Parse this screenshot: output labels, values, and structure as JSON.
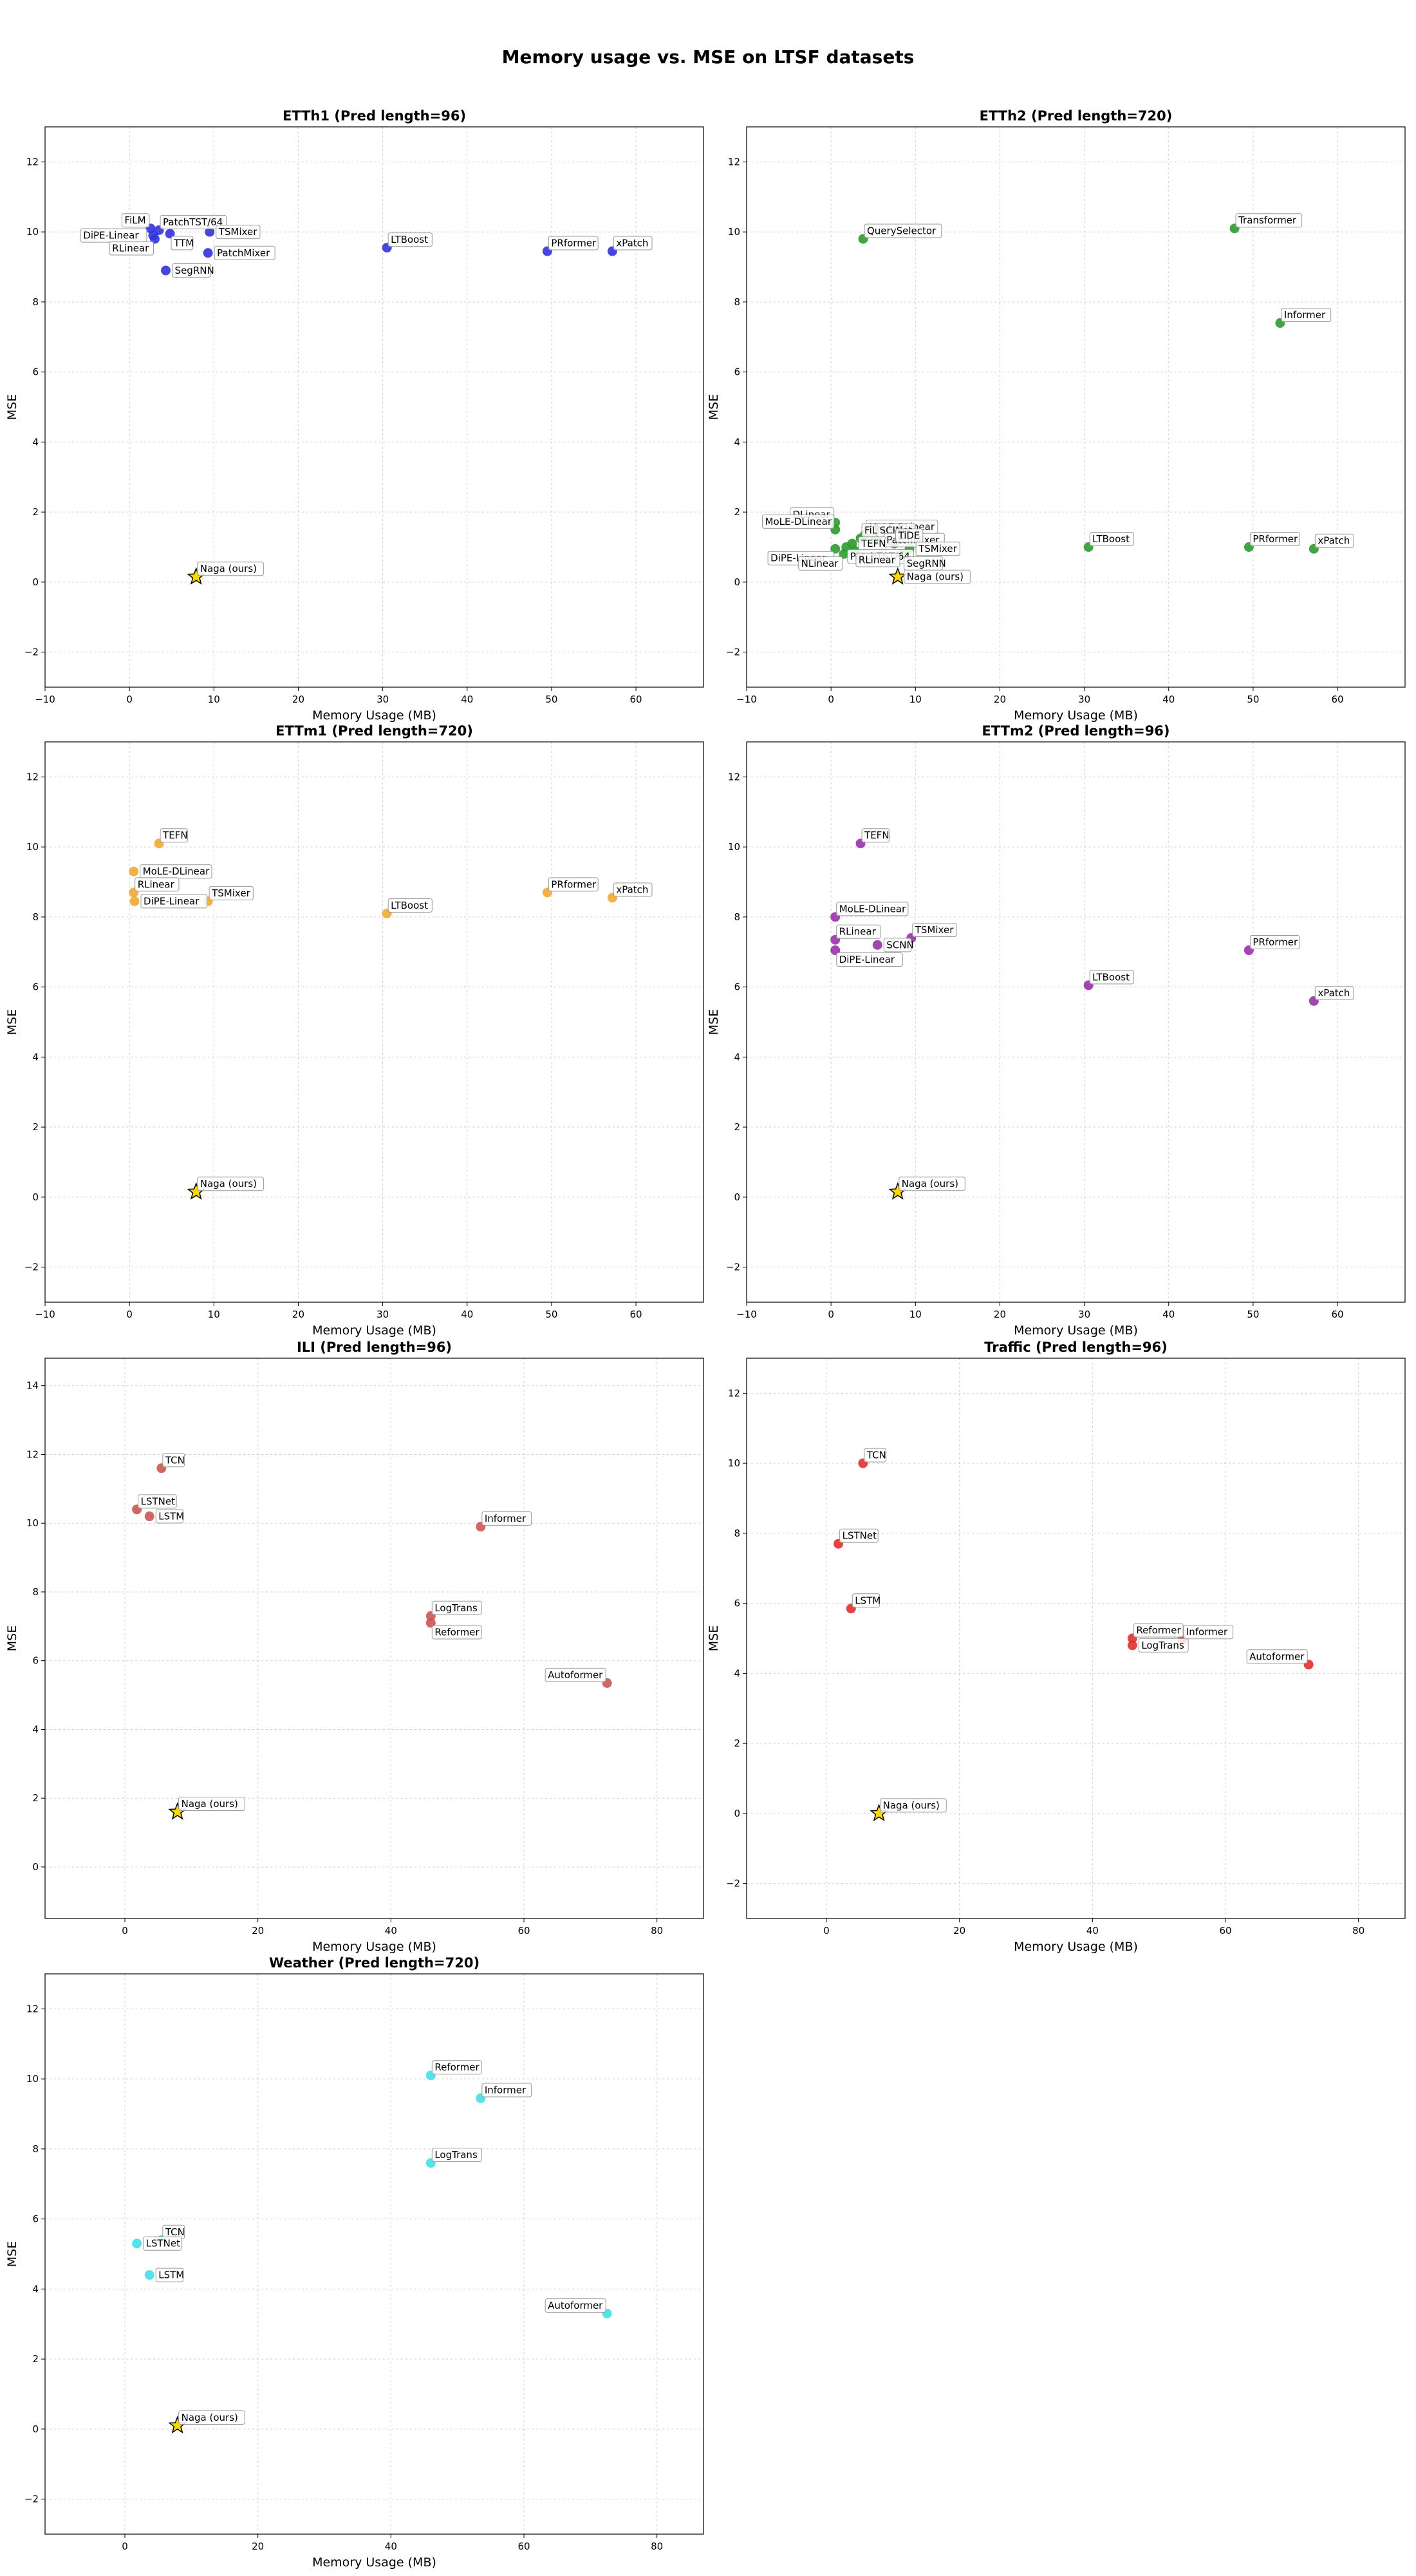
{
  "figure_title": "Memory usage vs. MSE on LTSF datasets",
  "chart_data": [
    {
      "type": "scatter",
      "title": "ETTh1 (Pred length=96)",
      "xlabel": "Memory Usage (MB)",
      "ylabel": "MSE",
      "xlim": [
        -10,
        68
      ],
      "ylim": [
        -3,
        13
      ],
      "xticks": [
        -10,
        0,
        10,
        20,
        30,
        40,
        50,
        60
      ],
      "yticks": [
        -2,
        0,
        2,
        4,
        6,
        8,
        10,
        12
      ],
      "color": "#3333dd",
      "grid": true,
      "points": [
        {
          "name": "FiLM",
          "x": 2.5,
          "y": 10.1,
          "placement": "above-left"
        },
        {
          "name": "PatchTST/64",
          "x": 3.5,
          "y": 10.05,
          "placement": "above-right"
        },
        {
          "name": "DiPE-Linear",
          "x": 2.8,
          "y": 9.9,
          "placement": "left"
        },
        {
          "name": "RLinear",
          "x": 3.0,
          "y": 9.8,
          "placement": "below-left"
        },
        {
          "name": "TTM",
          "x": 4.8,
          "y": 9.95,
          "placement": "below-right"
        },
        {
          "name": "TSMixer",
          "x": 9.5,
          "y": 10.0,
          "placement": "right"
        },
        {
          "name": "PatchMixer",
          "x": 9.3,
          "y": 9.4,
          "placement": "right"
        },
        {
          "name": "SegRNN",
          "x": 4.3,
          "y": 8.9,
          "placement": "right"
        },
        {
          "name": "LTBoost",
          "x": 30.5,
          "y": 9.55,
          "placement": "above-right"
        },
        {
          "name": "PRformer",
          "x": 49.5,
          "y": 9.45,
          "placement": "above-right"
        },
        {
          "name": "xPatch",
          "x": 57.2,
          "y": 9.45,
          "placement": "above-right"
        },
        {
          "name": "Naga (ours)",
          "x": 7.9,
          "y": 0.15,
          "placement": "above-right",
          "star": true
        }
      ]
    },
    {
      "type": "scatter",
      "title": "ETTh2 (Pred length=720)",
      "xlabel": "Memory Usage (MB)",
      "ylabel": "MSE",
      "xlim": [
        -10,
        68
      ],
      "ylim": [
        -3,
        13
      ],
      "xticks": [
        -10,
        0,
        10,
        20,
        30,
        40,
        50,
        60
      ],
      "yticks": [
        -2,
        0,
        2,
        4,
        6,
        8,
        10,
        12
      ],
      "color": "#2e9b2e",
      "grid": true,
      "points": [
        {
          "name": "QuerySelector",
          "x": 3.8,
          "y": 9.8,
          "placement": "above-right"
        },
        {
          "name": "Transformer",
          "x": 47.8,
          "y": 10.1,
          "placement": "above-right"
        },
        {
          "name": "Informer",
          "x": 53.2,
          "y": 7.4,
          "placement": "above-right"
        },
        {
          "name": "DLinear",
          "x": 0.5,
          "y": 1.7,
          "placement": "above-left"
        },
        {
          "name": "MoLE-DLinear",
          "x": 0.5,
          "y": 1.5,
          "placement": "above-left"
        },
        {
          "name": "MoLE-RLinear",
          "x": 4.0,
          "y": 1.35,
          "placement": "above-right"
        },
        {
          "name": "FiLM",
          "x": 3.5,
          "y": 1.25,
          "placement": "above-right"
        },
        {
          "name": "SCINet",
          "x": 5.3,
          "y": 1.25,
          "placement": "above-right"
        },
        {
          "name": "PatchMixer",
          "x": 5.5,
          "y": 1.2,
          "placement": "right"
        },
        {
          "name": "TiDE",
          "x": 7.5,
          "y": 1.1,
          "placement": "above-right"
        },
        {
          "name": "TEFN",
          "x": 2.5,
          "y": 1.1,
          "placement": "right"
        },
        {
          "name": "TSMixer",
          "x": 9.3,
          "y": 0.95,
          "placement": "right"
        },
        {
          "name": "DiPE-Linear",
          "x": 0.5,
          "y": 0.95,
          "placement": "below-left"
        },
        {
          "name": "PatchTST/64",
          "x": 1.8,
          "y": 1.0,
          "placement": "below-right"
        },
        {
          "name": "SegRNN",
          "x": 8.5,
          "y": 0.8,
          "placement": "below-right"
        },
        {
          "name": "NLinear",
          "x": 1.5,
          "y": 0.8,
          "placement": "below-left"
        },
        {
          "name": "RLinear",
          "x": 2.8,
          "y": 0.9,
          "placement": "below-right"
        },
        {
          "name": "LTBoost",
          "x": 30.5,
          "y": 1.0,
          "placement": "above-right"
        },
        {
          "name": "PRformer",
          "x": 49.5,
          "y": 1.0,
          "placement": "above-right"
        },
        {
          "name": "xPatch",
          "x": 57.2,
          "y": 0.95,
          "placement": "above-right"
        },
        {
          "name": "Naga (ours)",
          "x": 7.9,
          "y": 0.15,
          "placement": "right",
          "star": true
        }
      ]
    },
    {
      "type": "scatter",
      "title": "ETTm1 (Pred length=720)",
      "xlabel": "Memory Usage (MB)",
      "ylabel": "MSE",
      "xlim": [
        -10,
        68
      ],
      "ylim": [
        -3,
        13
      ],
      "xticks": [
        -10,
        0,
        10,
        20,
        30,
        40,
        50,
        60
      ],
      "yticks": [
        -2,
        0,
        2,
        4,
        6,
        8,
        10,
        12
      ],
      "color": "#f0a830",
      "grid": true,
      "points": [
        {
          "name": "TEFN",
          "x": 3.5,
          "y": 10.1,
          "placement": "above-right"
        },
        {
          "name": "MoLE-DLinear",
          "x": 0.5,
          "y": 9.3,
          "placement": "right"
        },
        {
          "name": "RLinear",
          "x": 0.5,
          "y": 8.7,
          "placement": "above-right"
        },
        {
          "name": "DiPE-Linear",
          "x": 0.6,
          "y": 8.45,
          "placement": "right"
        },
        {
          "name": "TSMixer",
          "x": 9.3,
          "y": 8.45,
          "placement": "above-right"
        },
        {
          "name": "LTBoost",
          "x": 30.5,
          "y": 8.1,
          "placement": "above-right"
        },
        {
          "name": "PRformer",
          "x": 49.5,
          "y": 8.7,
          "placement": "above-right"
        },
        {
          "name": "xPatch",
          "x": 57.2,
          "y": 8.55,
          "placement": "above-right"
        },
        {
          "name": "Naga (ours)",
          "x": 7.9,
          "y": 0.15,
          "placement": "above-right",
          "star": true
        }
      ]
    },
    {
      "type": "scatter",
      "title": "ETTm2 (Pred length=96)",
      "xlabel": "Memory Usage (MB)",
      "ylabel": "MSE",
      "xlim": [
        -10,
        68
      ],
      "ylim": [
        -3,
        13
      ],
      "xticks": [
        -10,
        0,
        10,
        20,
        30,
        40,
        50,
        60
      ],
      "yticks": [
        -2,
        0,
        2,
        4,
        6,
        8,
        10,
        12
      ],
      "color": "#9932a8",
      "grid": true,
      "points": [
        {
          "name": "TEFN",
          "x": 3.5,
          "y": 10.1,
          "placement": "above-right"
        },
        {
          "name": "MoLE-DLinear",
          "x": 0.5,
          "y": 8.0,
          "placement": "above-right"
        },
        {
          "name": "RLinear",
          "x": 0.5,
          "y": 7.35,
          "placement": "above-right"
        },
        {
          "name": "SCNN",
          "x": 5.5,
          "y": 7.2,
          "placement": "right"
        },
        {
          "name": "TSMixer",
          "x": 9.5,
          "y": 7.4,
          "placement": "above-right"
        },
        {
          "name": "DiPE-Linear",
          "x": 0.5,
          "y": 7.05,
          "placement": "below-right"
        },
        {
          "name": "LTBoost",
          "x": 30.5,
          "y": 6.05,
          "placement": "above-right"
        },
        {
          "name": "PRformer",
          "x": 49.5,
          "y": 7.05,
          "placement": "above-right"
        },
        {
          "name": "xPatch",
          "x": 57.2,
          "y": 5.6,
          "placement": "above-right"
        },
        {
          "name": "Naga (ours)",
          "x": 7.9,
          "y": 0.15,
          "placement": "above-right",
          "star": true
        }
      ]
    },
    {
      "type": "scatter",
      "title": "ILI (Pred length=96)",
      "xlabel": "Memory Usage (MB)",
      "ylabel": "MSE",
      "xlim": [
        -12,
        87
      ],
      "ylim": [
        -1.5,
        14.8
      ],
      "xticks": [
        0,
        20,
        40,
        60,
        80
      ],
      "yticks": [
        0,
        2,
        4,
        6,
        8,
        10,
        12,
        14
      ],
      "color": "#cc5555",
      "grid": true,
      "points": [
        {
          "name": "TCN",
          "x": 5.5,
          "y": 11.6,
          "placement": "above-right"
        },
        {
          "name": "LSTNet",
          "x": 1.8,
          "y": 10.4,
          "placement": "above-right"
        },
        {
          "name": "LSTM",
          "x": 3.7,
          "y": 10.2,
          "placement": "right"
        },
        {
          "name": "Informer",
          "x": 53.5,
          "y": 9.9,
          "placement": "above-right"
        },
        {
          "name": "LogTrans",
          "x": 46.0,
          "y": 7.3,
          "placement": "above-right"
        },
        {
          "name": "Reformer",
          "x": 46.0,
          "y": 7.1,
          "placement": "below-right"
        },
        {
          "name": "Autoformer",
          "x": 72.5,
          "y": 5.35,
          "placement": "above-left"
        },
        {
          "name": "Naga (ours)",
          "x": 7.9,
          "y": 1.6,
          "placement": "above-right",
          "star": true
        }
      ]
    },
    {
      "type": "scatter",
      "title": "Traffic (Pred length=96)",
      "xlabel": "Memory Usage (MB)",
      "ylabel": "MSE",
      "xlim": [
        -12,
        87
      ],
      "ylim": [
        -3,
        13
      ],
      "xticks": [
        0,
        20,
        40,
        60,
        80
      ],
      "yticks": [
        -2,
        0,
        2,
        4,
        6,
        8,
        10,
        12
      ],
      "color": "#e03030",
      "grid": true,
      "points": [
        {
          "name": "TCN",
          "x": 5.5,
          "y": 10.0,
          "placement": "above-right"
        },
        {
          "name": "LSTNet",
          "x": 1.8,
          "y": 7.7,
          "placement": "above-right"
        },
        {
          "name": "LSTM",
          "x": 3.7,
          "y": 5.85,
          "placement": "above-right"
        },
        {
          "name": "Reformer",
          "x": 46.0,
          "y": 5.0,
          "placement": "above-right"
        },
        {
          "name": "LogTrans",
          "x": 46.0,
          "y": 4.8,
          "placement": "right"
        },
        {
          "name": "Informer",
          "x": 53.5,
          "y": 4.95,
          "placement": "above-right"
        },
        {
          "name": "Autoformer",
          "x": 72.5,
          "y": 4.25,
          "placement": "above-left"
        },
        {
          "name": "Naga (ours)",
          "x": 7.9,
          "y": 0.0,
          "placement": "above-right",
          "star": true
        }
      ]
    },
    {
      "type": "scatter",
      "title": "Weather (Pred length=720)",
      "xlabel": "Memory Usage (MB)",
      "ylabel": "MSE",
      "xlim": [
        -12,
        87
      ],
      "ylim": [
        -3,
        13
      ],
      "xticks": [
        0,
        20,
        40,
        60,
        80
      ],
      "yticks": [
        -2,
        0,
        2,
        4,
        6,
        8,
        10,
        12
      ],
      "color": "#40e0e8",
      "grid": true,
      "points": [
        {
          "name": "Reformer",
          "x": 46.0,
          "y": 10.1,
          "placement": "above-right"
        },
        {
          "name": "Informer",
          "x": 53.5,
          "y": 9.45,
          "placement": "above-right"
        },
        {
          "name": "LogTrans",
          "x": 46.0,
          "y": 7.6,
          "placement": "above-right"
        },
        {
          "name": "TCN",
          "x": 5.5,
          "y": 5.4,
          "placement": "above-right"
        },
        {
          "name": "LSTNet",
          "x": 1.8,
          "y": 5.3,
          "placement": "right"
        },
        {
          "name": "LSTM",
          "x": 3.7,
          "y": 4.4,
          "placement": "right"
        },
        {
          "name": "Autoformer",
          "x": 72.5,
          "y": 3.3,
          "placement": "above-left"
        },
        {
          "name": "Naga (ours)",
          "x": 7.9,
          "y": 0.1,
          "placement": "above-right",
          "star": true
        }
      ]
    }
  ]
}
